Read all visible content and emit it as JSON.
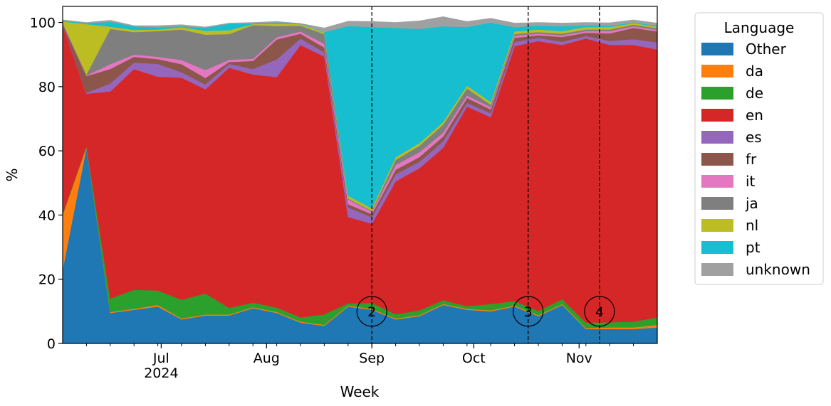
{
  "chart_data": {
    "type": "area",
    "stacked": true,
    "xlabel": "Week",
    "ylabel": "%",
    "ylim": [
      0,
      105
    ],
    "yticks": [
      0,
      20,
      40,
      60,
      80,
      100
    ],
    "xlim": [
      "2024-06-02",
      "2024-11-24"
    ],
    "x_major_ticks": [
      {
        "date": "2024-07-01",
        "label": "Jul",
        "sublabel": "2024"
      },
      {
        "date": "2024-08-01",
        "label": "Aug",
        "sublabel": ""
      },
      {
        "date": "2024-09-01",
        "label": "Sep",
        "sublabel": ""
      },
      {
        "date": "2024-10-01",
        "label": "Oct",
        "sublabel": ""
      },
      {
        "date": "2024-11-01",
        "label": "Nov",
        "sublabel": ""
      }
    ],
    "x_minor_ticks": [
      "2024-06-09",
      "2024-06-16",
      "2024-06-23",
      "2024-06-30",
      "2024-07-07",
      "2024-07-14",
      "2024-07-21",
      "2024-07-28",
      "2024-08-04",
      "2024-08-11",
      "2024-08-18",
      "2024-08-25",
      "2024-09-01",
      "2024-09-08",
      "2024-09-15",
      "2024-09-22",
      "2024-09-29",
      "2024-10-06",
      "2024-10-13",
      "2024-10-20",
      "2024-10-27",
      "2024-11-03",
      "2024-11-10",
      "2024-11-17"
    ],
    "legend": {
      "title": "Language",
      "position": "outside-right"
    },
    "x": [
      "2024-06-02",
      "2024-06-09",
      "2024-06-16",
      "2024-06-23",
      "2024-06-30",
      "2024-07-07",
      "2024-07-14",
      "2024-07-21",
      "2024-07-28",
      "2024-08-04",
      "2024-08-11",
      "2024-08-18",
      "2024-08-25",
      "2024-09-01",
      "2024-09-08",
      "2024-09-15",
      "2024-09-22",
      "2024-09-29",
      "2024-10-06",
      "2024-10-13",
      "2024-10-20",
      "2024-10-27",
      "2024-11-03",
      "2024-11-10",
      "2024-11-17",
      "2024-11-24"
    ],
    "series": [
      {
        "name": "Other",
        "color": "#1f77b4",
        "values": [
          23,
          61,
          9.5,
          10.5,
          11.5,
          7.5,
          8.7,
          8.7,
          11,
          9.5,
          6.5,
          5.5,
          11.5,
          10.5,
          7.5,
          8.5,
          12,
          10.5,
          10,
          11.5,
          8.5,
          12,
          4.5,
          4.5,
          4.5,
          5
        ]
      },
      {
        "name": "da",
        "color": "#ff7f0e",
        "values": [
          17,
          0.3,
          0.3,
          0.3,
          0.5,
          0.3,
          0.3,
          0.3,
          0.3,
          0.3,
          0.3,
          0.3,
          0.3,
          0.3,
          0.3,
          0.3,
          0.3,
          0.3,
          0.3,
          0.3,
          0.3,
          0.3,
          0.3,
          0.5,
          0.5,
          0.8
        ]
      },
      {
        "name": "de",
        "color": "#2ca02c",
        "values": [
          0.3,
          0.2,
          4.2,
          5.9,
          4.5,
          5.8,
          6.6,
          2.1,
          1.4,
          1.4,
          1.3,
          3.3,
          0.7,
          1.8,
          1.3,
          1.5,
          1.2,
          0.8,
          2,
          1.4,
          1.3,
          1.5,
          1.7,
          1.6,
          1.8,
          2.3
        ]
      },
      {
        "name": "en",
        "color": "#d62728",
        "values": [
          58.7,
          16.3,
          64.5,
          68.8,
          66.6,
          69.2,
          63.6,
          74.8,
          71.1,
          71.8,
          84.9,
          80.3,
          26.9,
          24.7,
          41.4,
          44.3,
          47.5,
          62.2,
          58.2,
          79.4,
          84.1,
          79.2,
          88.5,
          86.4,
          86.2,
          83.5
        ]
      },
      {
        "name": "es",
        "color": "#9467bd",
        "values": [
          0.2,
          0.3,
          2.5,
          2,
          4,
          1.7,
          1.5,
          1.2,
          1.7,
          5.5,
          2,
          1.3,
          3,
          2,
          2.2,
          2,
          2,
          1.2,
          1.2,
          1.3,
          1,
          1,
          0.8,
          1.3,
          1.8,
          2.2
        ]
      },
      {
        "name": "fr",
        "color": "#8c564b",
        "values": [
          0.3,
          5.2,
          4.5,
          1.8,
          1.5,
          2.5,
          2,
          0.6,
          2.5,
          6.2,
          1.5,
          1.5,
          1,
          1,
          1.4,
          1.5,
          1.5,
          1.5,
          1.2,
          1.3,
          0.8,
          1.5,
          1,
          2.3,
          3.5,
          3.4
        ]
      },
      {
        "name": "it",
        "color": "#e377c2",
        "values": [
          0.2,
          0.2,
          1.5,
          0.7,
          0.7,
          1.3,
          2.5,
          0.7,
          0.7,
          0.7,
          0.7,
          1.2,
          1.5,
          0.7,
          1.5,
          1.5,
          1.2,
          0.8,
          0.7,
          0.7,
          0.5,
          0.5,
          0.5,
          0.7,
          0.5,
          0.5
        ]
      },
      {
        "name": "ja",
        "color": "#7f7f7f",
        "values": [
          0.3,
          0.3,
          11,
          7,
          8,
          9.5,
          11,
          8,
          10.5,
          3.5,
          1.8,
          3,
          0.3,
          0.3,
          1.6,
          2,
          2.5,
          2.2,
          0.8,
          0.5,
          0.5,
          0.5,
          0.5,
          0.5,
          0.5,
          0.5
        ]
      },
      {
        "name": "nl",
        "color": "#bcbd22",
        "values": [
          0.3,
          15.7,
          0.7,
          0.7,
          0.5,
          0.7,
          1.2,
          1.2,
          0.3,
          0.7,
          0.5,
          0.5,
          0.8,
          0.8,
          0.8,
          0.8,
          0.8,
          0.8,
          0.8,
          0.8,
          0.8,
          0.8,
          0.8,
          0.8,
          0.5,
          0.5
        ]
      },
      {
        "name": "pt",
        "color": "#17becf",
        "values": [
          0.3,
          0.3,
          1.5,
          1.1,
          0.7,
          0.3,
          0.9,
          2,
          0.2,
          0.4,
          0.1,
          0.1,
          52.9,
          56.5,
          40.3,
          35.6,
          29.8,
          18.3,
          24.8,
          1.3,
          1.2,
          1.5,
          0.5,
          0.4,
          0.2,
          0.3
        ]
      },
      {
        "name": "unknown",
        "color": "#a0a0a0",
        "values": [
          0.2,
          0.2,
          0.5,
          0.2,
          0.5,
          0.5,
          0.3,
          0.2,
          0.3,
          0.3,
          0.1,
          1.3,
          1.5,
          1.7,
          1.7,
          2.5,
          3,
          1.7,
          1.3,
          1.3,
          1,
          1,
          0.9,
          0.9,
          0.8,
          0.8
        ]
      }
    ],
    "annotations": [
      {
        "date": "2024-09-01",
        "label": "2",
        "y": 10
      },
      {
        "date": "2024-10-17",
        "label": "3",
        "y": 10
      },
      {
        "date": "2024-11-07",
        "label": "4",
        "y": 10
      }
    ]
  }
}
